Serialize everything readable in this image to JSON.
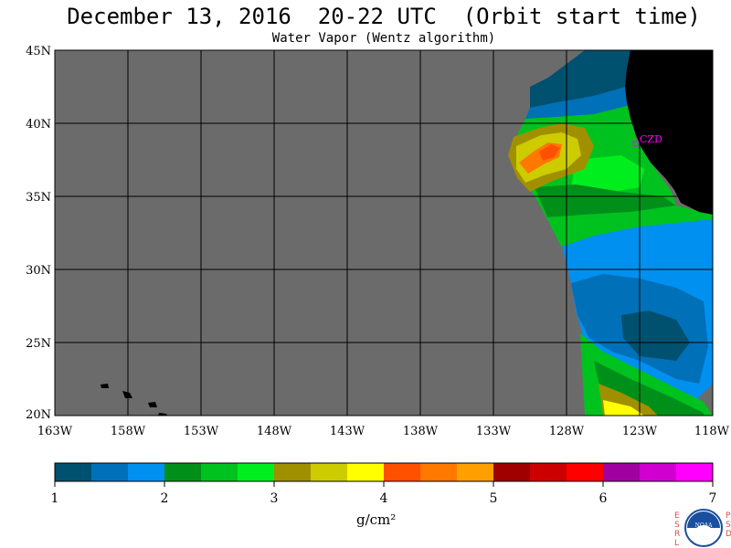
{
  "header": {
    "title": "December 13, 2016  20-22 UTC  (Orbit start time)",
    "subtitle": "Water Vapor (Wentz algorithm)"
  },
  "map": {
    "lat_ticks": [
      {
        "value": 45,
        "label": "45N"
      },
      {
        "value": 40,
        "label": "40N"
      },
      {
        "value": 35,
        "label": "35N"
      },
      {
        "value": 30,
        "label": "30N"
      },
      {
        "value": 25,
        "label": "25N"
      },
      {
        "value": 20,
        "label": "20N"
      }
    ],
    "lon_ticks": [
      {
        "value": -163,
        "label": "163W"
      },
      {
        "value": -158,
        "label": "158W"
      },
      {
        "value": -153,
        "label": "153W"
      },
      {
        "value": -148,
        "label": "148W"
      },
      {
        "value": -143,
        "label": "143W"
      },
      {
        "value": -138,
        "label": "138W"
      },
      {
        "value": -133,
        "label": "133W"
      },
      {
        "value": -128,
        "label": "128W"
      },
      {
        "value": -123,
        "label": "123W"
      },
      {
        "value": -118,
        "label": "118W"
      }
    ],
    "lon_range": [
      -163,
      -118
    ],
    "lat_range": [
      20,
      45
    ],
    "no_data_color": "#6b6b6b",
    "land_color": "#000000",
    "grid_color": "#000000",
    "station_label": "CZD",
    "station_color": "#ff00ff"
  },
  "colorbar": {
    "colors": [
      "#005070",
      "#0070b8",
      "#0090f0",
      "#00901a",
      "#00c21e",
      "#00ee1e",
      "#a09000",
      "#cccc00",
      "#ffff00",
      "#ff5000",
      "#ff7800",
      "#ffa000",
      "#a00000",
      "#cc0000",
      "#ff0000",
      "#a000a0",
      "#d000d0",
      "#ff00ff"
    ],
    "ticks": [
      {
        "value": 1,
        "label": "1"
      },
      {
        "value": 2,
        "label": "2"
      },
      {
        "value": 3,
        "label": "3"
      },
      {
        "value": 4,
        "label": "4"
      },
      {
        "value": 5,
        "label": "5"
      },
      {
        "value": 6,
        "label": "6"
      },
      {
        "value": 7,
        "label": "7"
      }
    ],
    "unit": "g/cm²"
  },
  "logo": {
    "left_letters": "ESRL",
    "right_letters": "PSD",
    "name": "NOAA"
  }
}
